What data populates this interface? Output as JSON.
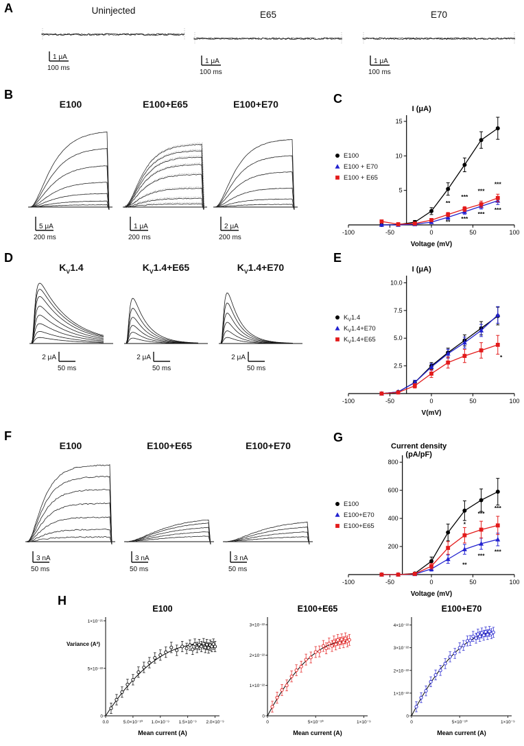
{
  "figure": {
    "labels": {
      "A": "A",
      "B": "B",
      "C": "C",
      "D": "D",
      "E": "E",
      "F": "F",
      "G": "G",
      "H": "H"
    }
  },
  "panelA": {
    "items": [
      {
        "title": "Uninjected",
        "v": "1 μA",
        "t": "100 ms"
      },
      {
        "title": "E65",
        "v": "1 μA",
        "t": "100 ms"
      },
      {
        "title": "E70",
        "v": "1 μA",
        "t": "100 ms"
      }
    ]
  },
  "panelB": {
    "items": [
      {
        "title": "E100",
        "v": "5 μA",
        "t": "200 ms",
        "amps": [
          0.03,
          0.08,
          0.18,
          0.33,
          0.55,
          0.78,
          1
        ],
        "maxh": 112,
        "tau": 0.22,
        "noise": 0.5
      },
      {
        "title": "E100+E65",
        "v": "1 μA",
        "t": "200 ms",
        "amps": [
          0.05,
          0.14,
          0.3,
          0.52,
          0.68,
          0.8,
          0.9,
          1
        ],
        "maxh": 92,
        "tau": 0.18,
        "noise": 1.2,
        "ghost": true
      },
      {
        "title": "E100+E70",
        "v": "2 μA",
        "t": "200 ms",
        "amps": [
          0.04,
          0.12,
          0.28,
          0.52,
          0.76,
          1
        ],
        "maxh": 100,
        "tau": 0.2,
        "noise": 0.6
      }
    ]
  },
  "panelD": {
    "items": [
      {
        "name": "KV1.4",
        "title_parts": [
          {
            "t": "K"
          },
          {
            "t": "V",
            "sub": true
          },
          {
            "t": "1.4"
          }
        ],
        "v": "2 μA",
        "t": "50 ms",
        "amps": [
          0.1,
          0.2,
          0.33,
          0.47,
          0.62,
          0.78,
          0.9,
          1
        ],
        "maxh": 88,
        "td": 0.42
      },
      {
        "name": "KV1.4+E65",
        "title_parts": [
          {
            "t": "K"
          },
          {
            "t": "V",
            "sub": true
          },
          {
            "t": "1.4+E65"
          }
        ],
        "v": "2 μA",
        "t": "50 ms",
        "amps": [
          0.12,
          0.25,
          0.4,
          0.58,
          0.78,
          1
        ],
        "maxh": 66,
        "td": 0.2
      },
      {
        "name": "KV1.4+E70",
        "title_parts": [
          {
            "t": "K"
          },
          {
            "t": "V",
            "sub": true
          },
          {
            "t": "1.4+E70"
          }
        ],
        "v": "2 μA",
        "t": "50 ms",
        "amps": [
          0.12,
          0.25,
          0.42,
          0.6,
          0.8,
          1
        ],
        "maxh": 74,
        "td": 0.18
      }
    ]
  },
  "panelF": {
    "items": [
      {
        "title": "E100",
        "v": "3 nA",
        "t": "50 ms",
        "amps": [
          0.06,
          0.16,
          0.32,
          0.5,
          0.68,
          0.85,
          1
        ],
        "maxh": 112,
        "tau": 0.15,
        "noise": 1.6
      },
      {
        "title": "E100+E65",
        "v": "3 nA",
        "t": "50 ms",
        "amps": [
          0.25,
          0.45,
          0.65,
          0.85,
          1
        ],
        "maxh": 36,
        "tau": 0.35,
        "noise": 0.7
      },
      {
        "title": "E100+E70",
        "v": "3 nA",
        "t": "50 ms",
        "amps": [
          0.25,
          0.5,
          0.75,
          1
        ],
        "maxh": 32,
        "tau": 0.35,
        "noise": 0.7
      }
    ]
  },
  "chart_data": [
    {
      "id": "C",
      "panel": "C",
      "type": "line",
      "title": "I (μA)",
      "xlabel": "Voltage (mV)",
      "xlim": [
        -100,
        100
      ],
      "ylim": [
        0,
        15.5
      ],
      "axis_cross_x": -30,
      "legend_y": 84,
      "xticks": [
        -100,
        -50,
        0,
        50,
        100
      ],
      "yticks": [
        5,
        10,
        15
      ],
      "series": [
        {
          "name": "E100",
          "marker": "circle",
          "color": "#000000",
          "x": [
            -60,
            -40,
            -20,
            0,
            20,
            40,
            60,
            80
          ],
          "y": [
            0,
            0.05,
            0.4,
            2,
            5.2,
            8.7,
            12.3,
            14
          ],
          "err": [
            0.1,
            0.1,
            0.25,
            0.5,
            0.9,
            1,
            1.2,
            1.6
          ]
        },
        {
          "name": "E100 + E70",
          "marker": "triangle",
          "color": "#2121cf",
          "x": [
            -60,
            -40,
            -20,
            0,
            20,
            40,
            60,
            80
          ],
          "y": [
            0,
            0,
            0.1,
            0.4,
            1.1,
            1.9,
            2.7,
            3.5
          ],
          "err": [
            0.05,
            0.05,
            0.1,
            0.15,
            0.3,
            0.35,
            0.4,
            0.55
          ]
        },
        {
          "name": "E100 + E65",
          "marker": "square",
          "color": "#e31b1b",
          "x": [
            -60,
            -40,
            -20,
            0,
            20,
            40,
            60,
            80
          ],
          "y": [
            0.5,
            0.1,
            0.2,
            0.7,
            1.5,
            2.3,
            3,
            3.9
          ],
          "err": [
            0.1,
            0.05,
            0.1,
            0.2,
            0.3,
            0.35,
            0.45,
            0.55
          ]
        }
      ],
      "annotations": [
        {
          "x": 20,
          "y": 2.9,
          "text": "**"
        },
        {
          "x": 20,
          "y": 0.15,
          "text": "**"
        },
        {
          "x": 40,
          "y": 3.8,
          "text": "***"
        },
        {
          "x": 40,
          "y": 0.6,
          "text": "***"
        },
        {
          "x": 60,
          "y": 4.6,
          "text": "***"
        },
        {
          "x": 60,
          "y": 1.3,
          "text": "***"
        },
        {
          "x": 80,
          "y": 5.6,
          "text": "***"
        },
        {
          "x": 80,
          "y": 1.9,
          "text": "***"
        }
      ]
    },
    {
      "id": "E",
      "panel": "E",
      "type": "line",
      "title": "I (μA)",
      "xlabel": "V(mV)",
      "xlim": [
        -100,
        100
      ],
      "ylim": [
        0,
        10.4
      ],
      "axis_cross_x": -30,
      "legend_y": 86,
      "xticks": [
        -100,
        -50,
        0,
        50,
        100
      ],
      "yticks": [
        2.5,
        5,
        7.5,
        10
      ],
      "ytick_labels": [
        "2.5",
        "5.0",
        "7.5",
        "10.0"
      ],
      "series": [
        {
          "name": "KV1.4",
          "label_parts": [
            {
              "t": "K"
            },
            {
              "t": "V",
              "sub": true
            },
            {
              "t": "1.4"
            }
          ],
          "marker": "circle",
          "color": "#000000",
          "x": [
            -60,
            -40,
            -20,
            0,
            20,
            40,
            60,
            80
          ],
          "y": [
            0,
            0.15,
            1,
            2.5,
            3.7,
            4.8,
            5.9,
            7
          ],
          "err": [
            0.05,
            0.1,
            0.2,
            0.3,
            0.4,
            0.5,
            0.6,
            0.8
          ]
        },
        {
          "name": "KV1.4+E70",
          "label_parts": [
            {
              "t": "K"
            },
            {
              "t": "V",
              "sub": true
            },
            {
              "t": "1.4+E70"
            }
          ],
          "marker": "triangle",
          "color": "#2121cf",
          "x": [
            -60,
            -40,
            -20,
            0,
            20,
            40,
            60,
            80
          ],
          "y": [
            0,
            0.15,
            1,
            2.4,
            3.6,
            4.6,
            5.7,
            7.1
          ],
          "err": [
            0.05,
            0.1,
            0.2,
            0.3,
            0.4,
            0.5,
            0.55,
            0.75
          ]
        },
        {
          "name": "KV1.4+E65",
          "label_parts": [
            {
              "t": "K"
            },
            {
              "t": "V",
              "sub": true
            },
            {
              "t": "1.4+E65"
            }
          ],
          "marker": "square",
          "color": "#e31b1b",
          "x": [
            -60,
            -40,
            -20,
            0,
            20,
            40,
            60,
            80
          ],
          "y": [
            0,
            0.1,
            0.7,
            1.8,
            2.8,
            3.4,
            3.9,
            4.4
          ],
          "err": [
            0.05,
            0.1,
            0.2,
            0.35,
            0.5,
            0.6,
            0.7,
            0.85
          ]
        }
      ],
      "annotations": [
        {
          "x": 84,
          "y": 3.1,
          "text": "*"
        }
      ]
    },
    {
      "id": "G",
      "panel": "G",
      "type": "line",
      "title_lines": [
        "Current density",
        "(pA/pF)"
      ],
      "xlabel": "Voltage (mV)",
      "xlim": [
        -100,
        100
      ],
      "ylim": [
        0,
        830
      ],
      "axis_cross_x": -35,
      "legend_y": 96,
      "xticks": [
        -100,
        -50,
        0,
        50,
        100
      ],
      "yticks": [
        200,
        400,
        600,
        800
      ],
      "series": [
        {
          "name": "E100",
          "marker": "circle",
          "color": "#000000",
          "x": [
            -60,
            -40,
            -20,
            0,
            20,
            40,
            60,
            80
          ],
          "y": [
            0,
            0,
            8,
            95,
            300,
            455,
            530,
            590
          ],
          "err": [
            3,
            3,
            8,
            30,
            60,
            70,
            80,
            95
          ]
        },
        {
          "name": "E100+E70",
          "marker": "triangle",
          "color": "#2121cf",
          "x": [
            -60,
            -40,
            -20,
            0,
            20,
            40,
            60,
            80
          ],
          "y": [
            0,
            0,
            3,
            40,
            110,
            180,
            220,
            250
          ],
          "err": [
            3,
            3,
            5,
            15,
            30,
            35,
            40,
            45
          ]
        },
        {
          "name": "E100+E65",
          "marker": "square",
          "color": "#e31b1b",
          "x": [
            -60,
            -40,
            -20,
            0,
            20,
            40,
            60,
            80
          ],
          "y": [
            0,
            0,
            5,
            60,
            190,
            280,
            320,
            350
          ],
          "err": [
            3,
            3,
            6,
            20,
            45,
            55,
            60,
            65
          ]
        }
      ],
      "annotations": [
        {
          "x": 40,
          "y": 345,
          "text": "*"
        },
        {
          "x": 60,
          "y": 420,
          "text": "***"
        },
        {
          "x": 80,
          "y": 460,
          "text": "***"
        },
        {
          "x": 40,
          "y": 55,
          "text": "**"
        },
        {
          "x": 60,
          "y": 120,
          "text": "***"
        },
        {
          "x": 80,
          "y": 150,
          "text": "***"
        }
      ]
    },
    {
      "id": "H1",
      "panel": "H",
      "type": "scatter",
      "title": "E100",
      "color": "#000000",
      "xlabel": "Mean current (A)",
      "ylabel": "Variance (A²)",
      "x_unit": "1e-10 A",
      "y_unit": "1e-22 A²",
      "xlim": [
        0,
        20.8
      ],
      "ylim": [
        0,
        10.4
      ],
      "xticks": [
        {
          "v": 0,
          "l": "0.0"
        },
        {
          "v": 5,
          "l": "5.0×10⁻¹⁰"
        },
        {
          "v": 10,
          "l": "1.0×10⁻⁹"
        },
        {
          "v": 15,
          "l": "1.5×10⁻⁹"
        },
        {
          "v": 20,
          "l": "2.0×10⁻⁹"
        }
      ],
      "yticks": [
        {
          "v": 0,
          "l": "0"
        },
        {
          "v": 5,
          "l": "5×10⁻²²"
        },
        {
          "v": 10,
          "l": "1×10⁻²¹"
        }
      ],
      "fit": {
        "x0": 17,
        "y0": 7.5
      },
      "err": 0.55,
      "points": [
        [
          1,
          0.8
        ],
        [
          2,
          1.7
        ],
        [
          3,
          2.5
        ],
        [
          4,
          3.3
        ],
        [
          5,
          3.8
        ],
        [
          6,
          4.6
        ],
        [
          7,
          5.1
        ],
        [
          8,
          5.6
        ],
        [
          9,
          6.1
        ],
        [
          10,
          6.4
        ],
        [
          11,
          6.7
        ],
        [
          12,
          7.2
        ],
        [
          13,
          6.9
        ],
        [
          14,
          7.3
        ],
        [
          14.8,
          7.1
        ],
        [
          15.4,
          7.45
        ],
        [
          15.9,
          7
        ],
        [
          16.3,
          7.55
        ],
        [
          16.7,
          7.2
        ],
        [
          17.1,
          7.5
        ],
        [
          17.5,
          7.3
        ],
        [
          17.9,
          7.6
        ],
        [
          18.2,
          7.2
        ],
        [
          18.5,
          7.5
        ],
        [
          18.8,
          7.15
        ],
        [
          19.1,
          7.45
        ],
        [
          19.4,
          7.3
        ],
        [
          19.7,
          7.55
        ],
        [
          20,
          7.3
        ]
      ]
    },
    {
      "id": "H2",
      "panel": "H",
      "type": "scatter",
      "title": "E100+E65",
      "color": "#e31b1b",
      "xlabel": "Mean current (A)",
      "ylabel": "",
      "x_unit": "1e-10 A",
      "y_unit": "1e-22 A²",
      "xlim": [
        0,
        10.4
      ],
      "ylim": [
        0,
        3.25
      ],
      "xticks": [
        {
          "v": 0,
          "l": "0"
        },
        {
          "v": 5,
          "l": "5×10⁻¹⁰"
        },
        {
          "v": 10,
          "l": "1×10⁻⁹"
        }
      ],
      "yticks": [
        {
          "v": 0,
          "l": "0"
        },
        {
          "v": 1,
          "l": "1×10⁻²²"
        },
        {
          "v": 2,
          "l": "2×10⁻²²"
        },
        {
          "v": 3,
          "l": "3×10⁻²²"
        }
      ],
      "fit": {
        "x0": 8.2,
        "y0": 2.45
      },
      "err": 0.18,
      "points": [
        [
          0.5,
          0.3
        ],
        [
          1,
          0.6
        ],
        [
          1.5,
          0.85
        ],
        [
          2,
          1
        ],
        [
          2.5,
          1.3
        ],
        [
          3,
          1.5
        ],
        [
          3.5,
          1.62
        ],
        [
          4,
          1.85
        ],
        [
          4.5,
          1.92
        ],
        [
          5,
          2.1
        ],
        [
          5.4,
          2.12
        ],
        [
          5.8,
          2.3
        ],
        [
          6.1,
          2.22
        ],
        [
          6.4,
          2.38
        ],
        [
          6.7,
          2.3
        ],
        [
          6.9,
          2.45
        ],
        [
          7.1,
          2.35
        ],
        [
          7.3,
          2.5
        ],
        [
          7.5,
          2.4
        ],
        [
          7.7,
          2.52
        ],
        [
          7.9,
          2.42
        ],
        [
          8.1,
          2.55
        ],
        [
          8.3,
          2.45
        ],
        [
          8.5,
          2.5
        ]
      ]
    },
    {
      "id": "H3",
      "panel": "H",
      "type": "scatter",
      "title": "E100+E70",
      "color": "#2121cf",
      "xlabel": "Mean current (A)",
      "ylabel": "",
      "x_unit": "1e-10 A",
      "y_unit": "1e-22 A²",
      "xlim": [
        0,
        10.4
      ],
      "ylim": [
        0,
        4.35
      ],
      "xticks": [
        {
          "v": 0,
          "l": "0"
        },
        {
          "v": 5,
          "l": "5×10⁻¹⁰"
        },
        {
          "v": 10,
          "l": "1×10⁻⁹"
        }
      ],
      "yticks": [
        {
          "v": 0,
          "l": "0"
        },
        {
          "v": 1,
          "l": "1×10⁻²²"
        },
        {
          "v": 2,
          "l": "2×10⁻²²"
        },
        {
          "v": 3,
          "l": "3×10⁻²²"
        },
        {
          "v": 4,
          "l": "4×10⁻²²"
        }
      ],
      "fit": {
        "x0": 9,
        "y0": 3.7
      },
      "err": 0.22,
      "points": [
        [
          0.5,
          0.4
        ],
        [
          1,
          0.8
        ],
        [
          1.5,
          1.1
        ],
        [
          2,
          1.5
        ],
        [
          2.5,
          1.8
        ],
        [
          3,
          2
        ],
        [
          3.5,
          2.3
        ],
        [
          4,
          2.6
        ],
        [
          4.5,
          2.75
        ],
        [
          5,
          3
        ],
        [
          5.4,
          3.1
        ],
        [
          5.8,
          3.3
        ],
        [
          6.1,
          3.32
        ],
        [
          6.4,
          3.5
        ],
        [
          6.7,
          3.42
        ],
        [
          6.9,
          3.6
        ],
        [
          7.1,
          3.5
        ],
        [
          7.3,
          3.65
        ],
        [
          7.5,
          3.55
        ],
        [
          7.7,
          3.7
        ],
        [
          7.9,
          3.58
        ],
        [
          8.1,
          3.72
        ],
        [
          8.3,
          3.62
        ],
        [
          8.5,
          3.68
        ]
      ]
    }
  ]
}
